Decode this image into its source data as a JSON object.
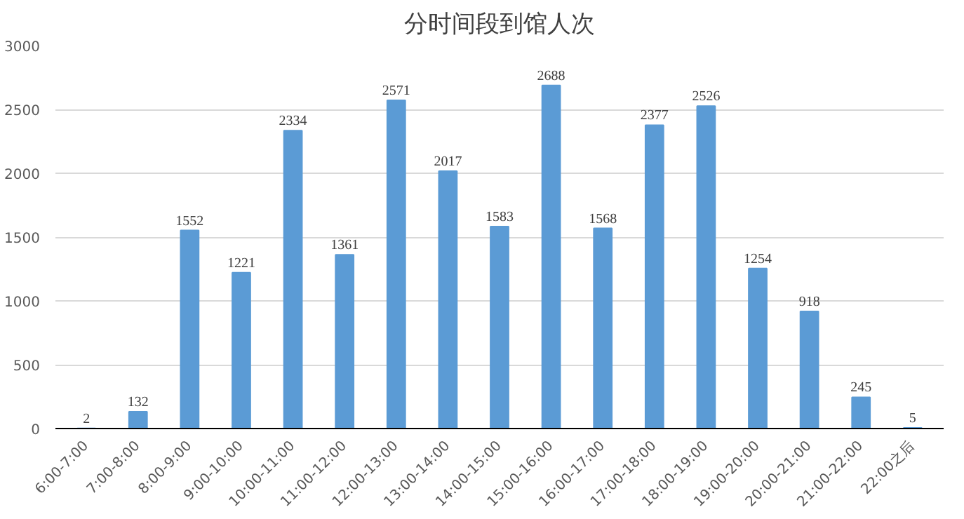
{
  "chart_data": {
    "type": "bar",
    "title": "分时间段到馆人次",
    "categories": [
      "6:00-7:00",
      "7:00-8:00",
      "8:00-9:00",
      "9:00-10:00",
      "10:00-11:00",
      "11:00-12:00",
      "12:00-13:00",
      "13:00-14:00",
      "14:00-15:00",
      "15:00-16:00",
      "16:00-17:00",
      "17:00-18:00",
      "18:00-19:00",
      "19:00-20:00",
      "20:00-21:00",
      "21:00-22:00",
      "22:00之后"
    ],
    "values": [
      2,
      132,
      1552,
      1221,
      2334,
      1361,
      2571,
      2017,
      1583,
      2688,
      1568,
      2377,
      2526,
      1254,
      918,
      245,
      5
    ],
    "color": "#5b9bd5",
    "ylim": [
      0,
      3000
    ],
    "yticks": [
      0,
      500,
      1000,
      1500,
      2000,
      2500,
      3000
    ],
    "grid": "y",
    "data_labels": true
  }
}
